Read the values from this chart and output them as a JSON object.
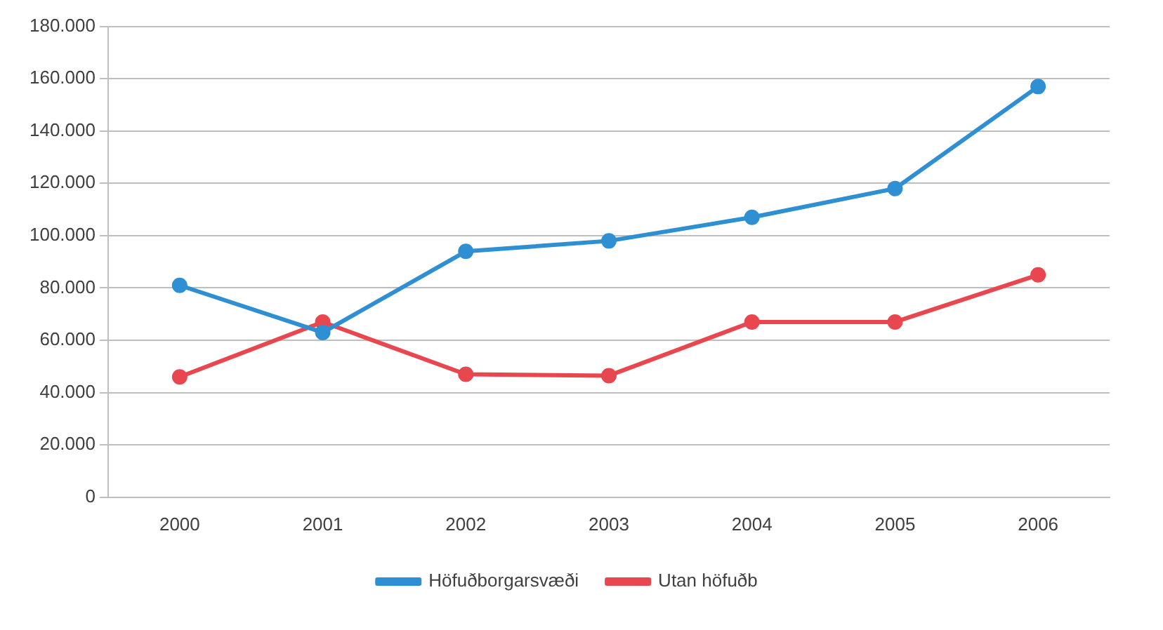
{
  "chart_data": {
    "type": "line",
    "categories": [
      "2000",
      "2001",
      "2002",
      "2003",
      "2004",
      "2005",
      "2006"
    ],
    "series": [
      {
        "name": "Höfuðborgarsvæði",
        "color": "#2f8fd3",
        "values": [
          81000,
          63000,
          94000,
          98000,
          107000,
          118000,
          157000
        ]
      },
      {
        "name": "Utan höfuðb",
        "color": "#e8474f",
        "values": [
          46000,
          67000,
          47000,
          46500,
          67000,
          67000,
          85000
        ]
      }
    ],
    "ylim": [
      0,
      180000
    ],
    "yticks": [
      {
        "value": 0,
        "label": "0"
      },
      {
        "value": 20000,
        "label": "20.000"
      },
      {
        "value": 40000,
        "label": "40.000"
      },
      {
        "value": 60000,
        "label": "60.000"
      },
      {
        "value": 80000,
        "label": "80.000"
      },
      {
        "value": 100000,
        "label": "100.000"
      },
      {
        "value": 120000,
        "label": "120.000"
      },
      {
        "value": 140000,
        "label": "140.000"
      },
      {
        "value": 160000,
        "label": "160.000"
      },
      {
        "value": 180000,
        "label": "180.000"
      }
    ],
    "grid": "y",
    "legend": "bottom",
    "marker": "circle",
    "line_style": "solid"
  }
}
